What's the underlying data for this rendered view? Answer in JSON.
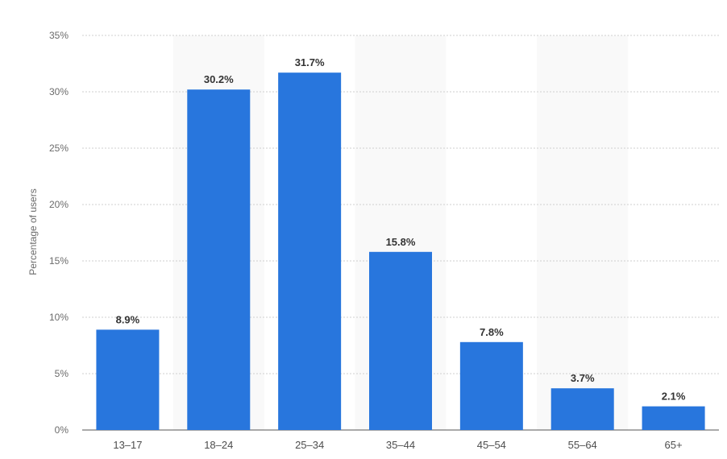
{
  "chart_data": {
    "type": "bar",
    "title": "",
    "xlabel": "",
    "ylabel": "Percentage of users",
    "categories": [
      "13–17",
      "18–24",
      "25–34",
      "35–44",
      "45–54",
      "55–64",
      "65+"
    ],
    "values": [
      8.9,
      30.2,
      31.7,
      15.8,
      7.8,
      3.7,
      2.1
    ],
    "value_labels": [
      "8.9%",
      "30.2%",
      "31.7%",
      "15.8%",
      "7.8%",
      "3.7%",
      "2.1%"
    ],
    "ylim": [
      0,
      35
    ],
    "yticks": [
      0,
      5,
      10,
      15,
      20,
      25,
      30,
      35
    ],
    "ytick_labels": [
      "0%",
      "5%",
      "10%",
      "15%",
      "20%",
      "25%",
      "30%",
      "35%"
    ],
    "grid": true,
    "bar_color": "#2876dd",
    "shaded_bands": [
      "18–24",
      "35–44",
      "55–64"
    ]
  }
}
